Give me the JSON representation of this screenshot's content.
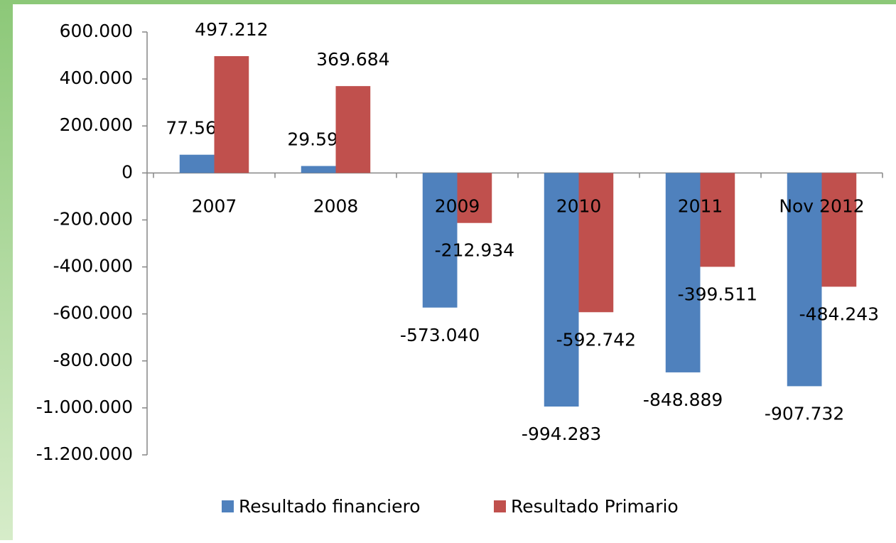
{
  "chart_data": {
    "type": "bar",
    "categories": [
      "2007",
      "2008",
      "2009",
      "2010",
      "2011",
      "Nov 2012"
    ],
    "series": [
      {
        "name": "Resultado financiero",
        "color": "#4f81bd",
        "values": [
          77569,
          29599,
          -573040,
          -994283,
          -848889,
          -907732
        ],
        "value_labels": [
          "77.569",
          "29.599",
          "-573.040",
          "-994.283",
          "-848.889",
          "-907.732"
        ]
      },
      {
        "name": "Resultado Primario",
        "color": "#c0504d",
        "values": [
          497212,
          369684,
          -212934,
          -592742,
          -399511,
          -484243
        ],
        "value_labels": [
          "497.212",
          "369.684",
          "-212.934",
          "-592.742",
          "-399.511",
          "-484.243"
        ]
      }
    ],
    "ylim": [
      -1200000,
      600000
    ],
    "yticks": [
      {
        "value": 600000,
        "label": "600.000"
      },
      {
        "value": 400000,
        "label": "400.000"
      },
      {
        "value": 200000,
        "label": "200.000"
      },
      0,
      {
        "value": -200000,
        "label": "-200.000"
      },
      {
        "value": -400000,
        "label": "-400.000"
      },
      {
        "value": -600000,
        "label": "-600.000"
      },
      {
        "value": -800000,
        "label": "-800.000"
      },
      {
        "value": -1000000,
        "label": "-1.000.000"
      },
      {
        "value": -1200000,
        "label": "-1.200.000"
      }
    ],
    "legend": "bottom"
  }
}
